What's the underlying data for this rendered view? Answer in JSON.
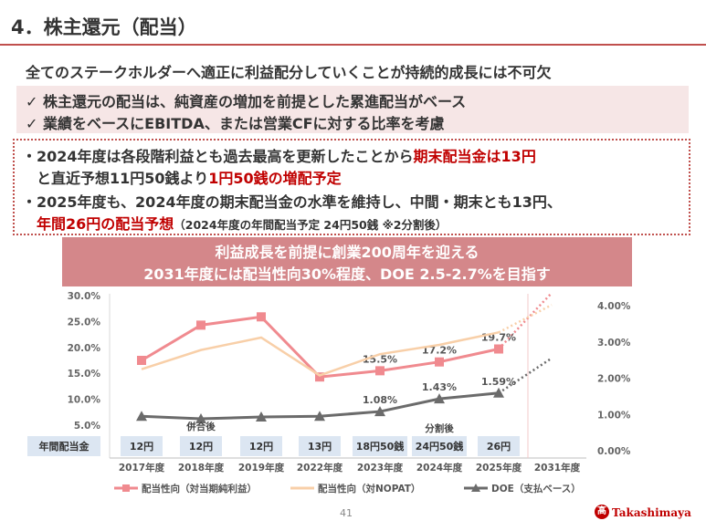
{
  "page": {
    "title": "4．株主還元（配当）",
    "subtitle": "全てのステークホルダーへ適正に利益配分していくことが持続的成長には不可欠",
    "policy_lines": [
      "✓ 株主還元の配当は、純資産の増加を前提とした累進配当がベース",
      "✓ 業績をベースにEBITDA、または営業CFに対する比率を考慮"
    ],
    "highlight": {
      "line1_a": "・2024年度は各段階利益とも過去最高を更新したことから",
      "line1_b": "期末配当金は13円",
      "line2_a": "と直近予想11円50銭より",
      "line2_b": "1円50銭の増配予定",
      "line3": "・2025年度も、2024年度の期末配当金の水準を維持し、中間・期末とも13円、",
      "line4_a": "年間26円の配当予想",
      "line4_b": "（2024年度の年間配当予定 24円50銭 ※2分割後）"
    },
    "banner": {
      "line1": "利益成長を前提に創業200周年を迎える",
      "line2": "2031年度には配当性向30%程度、DOE 2.5-2.7%を目指す"
    },
    "page_number": "41",
    "logo_text": "Takashimaya",
    "logo_mark": "髙"
  },
  "chart_data": {
    "type": "line",
    "categories": [
      "2017年度",
      "2018年度",
      "2019年度",
      "2022年度",
      "2023年度",
      "2024年度",
      "2025年度",
      "2031年度"
    ],
    "y_left": {
      "ticks": [
        "5.0%",
        "10.0%",
        "15.0%",
        "20.0%",
        "25.0%",
        "30.0%"
      ],
      "range": [
        5,
        30
      ]
    },
    "y_right": {
      "ticks": [
        "0.00%",
        "1.00%",
        "2.00%",
        "3.00%",
        "4.00%"
      ],
      "range": [
        0,
        4
      ]
    },
    "series": [
      {
        "name": "配当性向（対当期純利益）",
        "axis": "left",
        "color": "#f08a8f",
        "marker": "square",
        "values": [
          17.5,
          24.3,
          25.9,
          14.3,
          15.5,
          17.2,
          19.7,
          null
        ],
        "labels": [
          null,
          null,
          null,
          null,
          "15.5%",
          "17.2%",
          "19.7%",
          null
        ],
        "projection_to": 30.5
      },
      {
        "name": "配当性向（対NOPAT）",
        "axis": "left",
        "color": "#f8cfa8",
        "marker": "none",
        "values": [
          15.8,
          19.5,
          21.9,
          14.6,
          18.7,
          20.5,
          22.9,
          null
        ],
        "projection_to": 28.2
      },
      {
        "name": "DOE（支払ベース）",
        "axis": "right",
        "color": "#6b6b6b",
        "marker": "triangle",
        "values": [
          0.95,
          0.88,
          0.93,
          0.95,
          1.08,
          1.43,
          1.59,
          null
        ],
        "labels": [
          null,
          null,
          null,
          null,
          "1.08%",
          "1.43%",
          "1.59%",
          null
        ],
        "projection_to": 2.55
      }
    ],
    "dividends": {
      "row_label": "年間配当金",
      "values": [
        "12円",
        "12円",
        "12円",
        "13円",
        "18円50銭",
        "24円50銭",
        "26円",
        ""
      ]
    },
    "annotations": [
      {
        "text": "併合後",
        "category": "2018年度"
      },
      {
        "text": "分割後",
        "category": "2024年度"
      }
    ],
    "grid": false,
    "legend_position": "bottom"
  }
}
